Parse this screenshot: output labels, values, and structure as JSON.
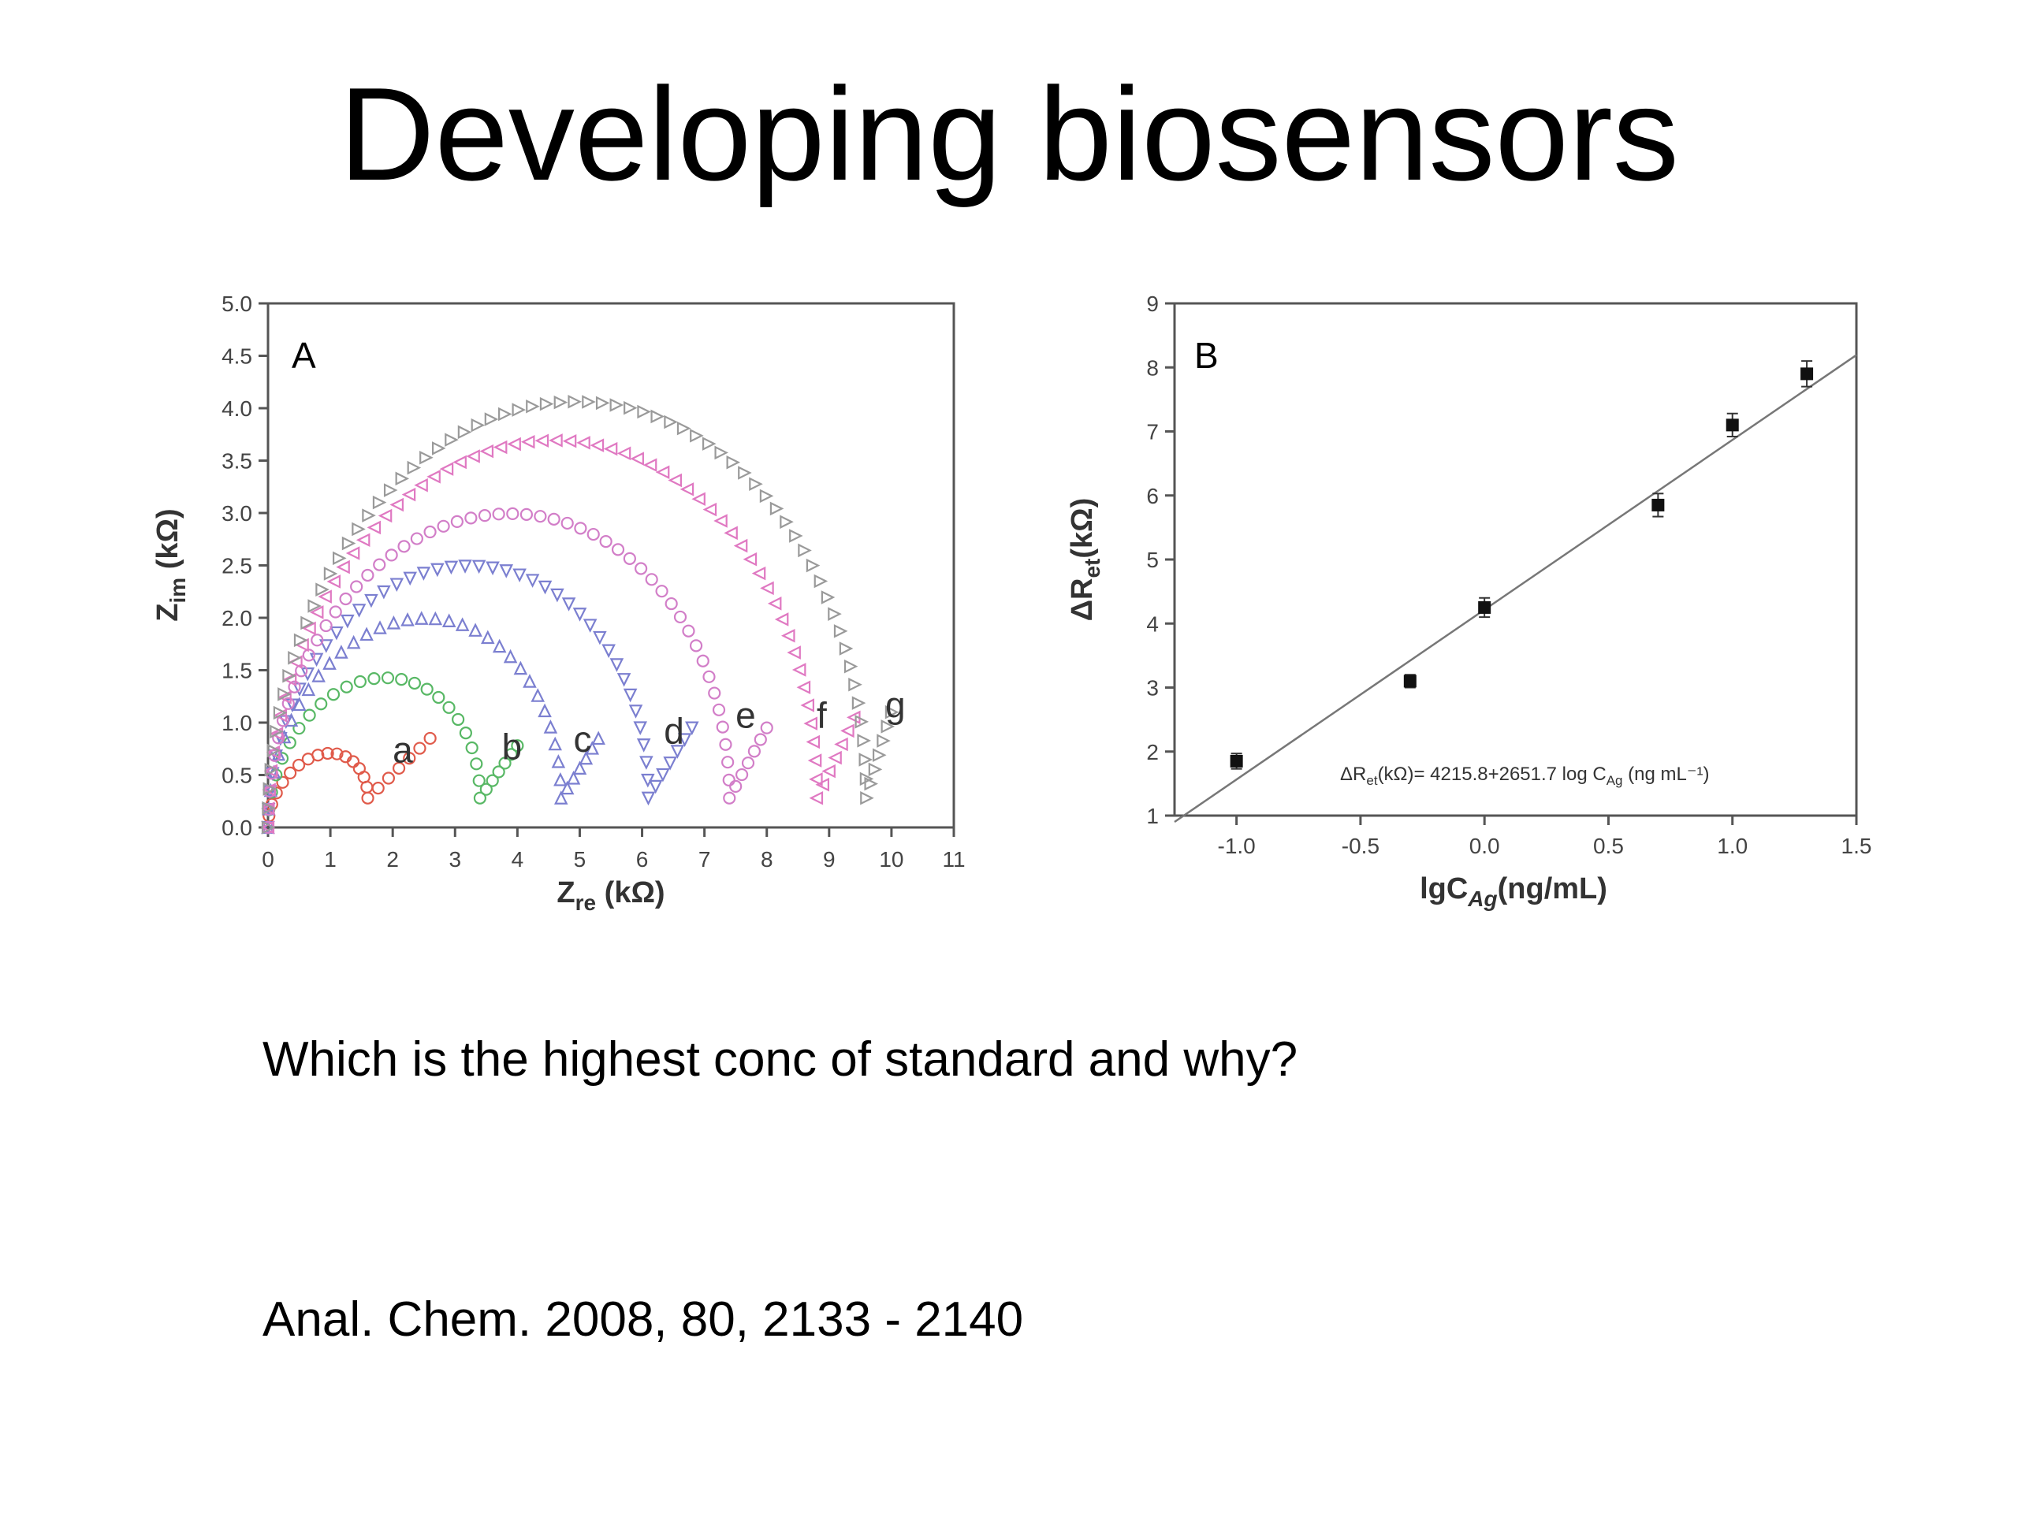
{
  "slide": {
    "title": "Developing biosensors",
    "question": "Which is the highest conc of standard and why?",
    "citation": "Anal. Chem. 2008, 80, 2133 - 2140"
  },
  "chart_data": [
    {
      "type": "scatter",
      "panel_label": "A",
      "xlabel": "Z",
      "xlabel_sub": "re",
      "xlabel_unit": " (kΩ)",
      "ylabel": "Z",
      "ylabel_sub": "im",
      "ylabel_unit": " (kΩ)",
      "xlim": [
        0,
        11
      ],
      "ylim": [
        0,
        5
      ],
      "xticks": [
        "0",
        "1",
        "2",
        "3",
        "4",
        "5",
        "6",
        "7",
        "8",
        "9",
        "10",
        "11"
      ],
      "yticks": [
        "0.0",
        "0.5",
        "1.0",
        "1.5",
        "2.0",
        "2.5",
        "3.0",
        "3.5",
        "4.0",
        "4.5",
        "5.0"
      ],
      "grid": false,
      "series": [
        {
          "name": "a",
          "color": "#e05a4a",
          "marker": "circle",
          "arc_end": 1.6,
          "arc_peak": 0.55,
          "tail_end": 2.6,
          "tail_top": 0.85
        },
        {
          "name": "b",
          "color": "#58b865",
          "marker": "circle",
          "arc_end": 3.4,
          "arc_peak": 1.28,
          "tail_end": 4.0,
          "tail_top": 0.78
        },
        {
          "name": "c",
          "color": "#7b7fd0",
          "marker": "triangle-up",
          "arc_end": 4.7,
          "arc_peak": 1.85,
          "tail_end": 5.3,
          "tail_top": 0.85
        },
        {
          "name": "d",
          "color": "#7b7fd0",
          "marker": "triangle-down",
          "arc_end": 6.1,
          "arc_peak": 2.35,
          "tail_end": 6.8,
          "tail_top": 0.95
        },
        {
          "name": "e",
          "color": "#d27ec8",
          "marker": "circle",
          "arc_end": 7.4,
          "arc_peak": 2.85,
          "tail_end": 8.0,
          "tail_top": 0.95
        },
        {
          "name": "f",
          "color": "#e079c2",
          "marker": "triangle-left",
          "arc_end": 8.8,
          "arc_peak": 3.55,
          "tail_end": 9.4,
          "tail_top": 1.05
        },
        {
          "name": "g",
          "color": "#9a9a9a",
          "marker": "triangle-right",
          "arc_end": 9.6,
          "arc_peak": 3.92,
          "tail_end": 10.0,
          "tail_top": 1.1
        }
      ],
      "label_positions": [
        {
          "name": "a",
          "x": 2.0,
          "y": 0.62
        },
        {
          "name": "b",
          "x": 3.75,
          "y": 0.65
        },
        {
          "name": "c",
          "x": 4.9,
          "y": 0.72
        },
        {
          "name": "d",
          "x": 6.35,
          "y": 0.8
        },
        {
          "name": "e",
          "x": 7.5,
          "y": 0.95
        },
        {
          "name": "f",
          "x": 8.8,
          "y": 0.95
        },
        {
          "name": "g",
          "x": 9.9,
          "y": 1.05
        }
      ]
    },
    {
      "type": "scatter",
      "panel_label": "B",
      "xlabel": "lgC",
      "xlabel_sub": "Ag",
      "xlabel_unit": "(ng/mL)",
      "ylabel": "ΔR",
      "ylabel_sub": "et",
      "ylabel_unit": "(kΩ)",
      "xlim": [
        -1.25,
        1.5
      ],
      "ylim": [
        1,
        9
      ],
      "xticks": [
        -1.0,
        -0.5,
        0.0,
        0.5,
        1.0,
        1.5
      ],
      "xtick_labels": [
        "-1.0",
        "-0.5",
        "0.0",
        "0.5",
        "1.0",
        "1.5"
      ],
      "yticks": [
        "1",
        "2",
        "3",
        "4",
        "5",
        "6",
        "7",
        "8",
        "9"
      ],
      "grid": false,
      "points": [
        {
          "x": -1.0,
          "y": 1.85,
          "err": 0.12
        },
        {
          "x": -0.3,
          "y": 3.1,
          "err": 0.1
        },
        {
          "x": 0.0,
          "y": 4.25,
          "err": 0.15
        },
        {
          "x": 0.7,
          "y": 5.85,
          "err": 0.18
        },
        {
          "x": 1.0,
          "y": 7.1,
          "err": 0.18
        },
        {
          "x": 1.3,
          "y": 7.9,
          "err": 0.2
        }
      ],
      "fit": {
        "intercept": 4.2158,
        "slope": 2.6517,
        "x_from": -1.25,
        "x_to": 1.5
      },
      "equation": "ΔR",
      "equation_sub": "et",
      "equation_rest": "(kΩ)= 4215.8+2651.7 log C",
      "equation_sub2": "Ag",
      "equation_end": " (ng mL⁻¹)"
    }
  ]
}
